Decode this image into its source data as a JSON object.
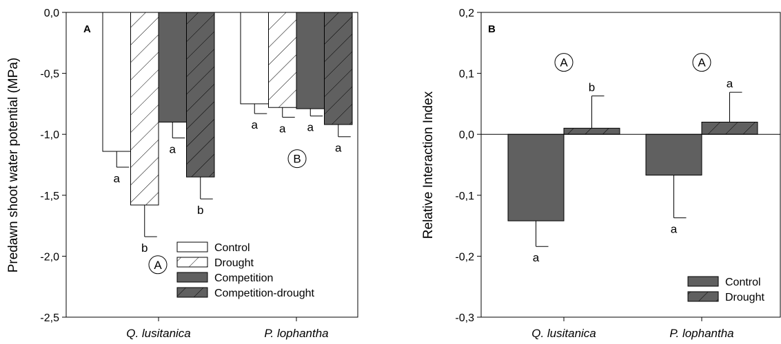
{
  "chart_data": [
    {
      "type": "bar",
      "panel_label": "A",
      "ylabel": "Predawn shoot water potential (MPa)",
      "ylim": [
        -2.5,
        0.0
      ],
      "yticks": [
        0.0,
        -0.5,
        -1.0,
        -1.5,
        -2.0,
        -2.5
      ],
      "ytick_labels": [
        "0,0",
        "-0,5",
        "-1,0",
        "-1,5",
        "-2,0",
        "-2,5"
      ],
      "categories": [
        "Q. lusitanica",
        "P. lophantha"
      ],
      "series": [
        {
          "name": "Control",
          "values": [
            -1.14,
            -0.75
          ],
          "errors": [
            0.13,
            0.08
          ],
          "letters": [
            "a",
            "a"
          ]
        },
        {
          "name": "Drought",
          "values": [
            -1.58,
            -0.78
          ],
          "errors": [
            0.26,
            0.08
          ],
          "letters": [
            "b",
            "a"
          ]
        },
        {
          "name": "Competition",
          "values": [
            -0.9,
            -0.79
          ],
          "errors": [
            0.13,
            0.06
          ],
          "letters": [
            "a",
            "a"
          ]
        },
        {
          "name": "Competition-drought",
          "values": [
            -1.35,
            -0.92
          ],
          "errors": [
            0.18,
            0.1
          ],
          "letters": [
            "b",
            "a"
          ]
        }
      ],
      "annotations": [
        {
          "text": "A",
          "category": "Q. lusitanica",
          "y": -2.07
        },
        {
          "text": "B",
          "category": "P. lophantha",
          "y": -1.2
        }
      ],
      "legend": "bottom-right",
      "grid": false
    },
    {
      "type": "bar",
      "panel_label": "B",
      "ylabel": "Relative Interaction Index",
      "ylim": [
        -0.3,
        0.2
      ],
      "yticks": [
        0.2,
        0.1,
        0.0,
        -0.1,
        -0.2,
        -0.3
      ],
      "ytick_labels": [
        "0,2",
        "0,1",
        "0,0",
        "-0,1",
        "-0,2",
        "-0,3"
      ],
      "categories": [
        "Q. lusitanica",
        "P. lophantha"
      ],
      "series": [
        {
          "name": "Control",
          "values": [
            -0.142,
            -0.067
          ],
          "errors": [
            0.042,
            0.07
          ],
          "letters": [
            "a",
            "a"
          ]
        },
        {
          "name": "Drought",
          "values": [
            0.01,
            0.02
          ],
          "errors": [
            0.053,
            0.049
          ],
          "letters": [
            "b",
            "a"
          ]
        }
      ],
      "annotations": [
        {
          "text": "A",
          "category": "Q. lusitanica",
          "y": 0.118
        },
        {
          "text": "A",
          "category": "P. lophantha",
          "y": 0.118
        }
      ],
      "legend": "bottom-right",
      "grid": false
    }
  ],
  "colors": {
    "open": "#ffffff",
    "filled": "#606060",
    "stroke": "#000000"
  }
}
